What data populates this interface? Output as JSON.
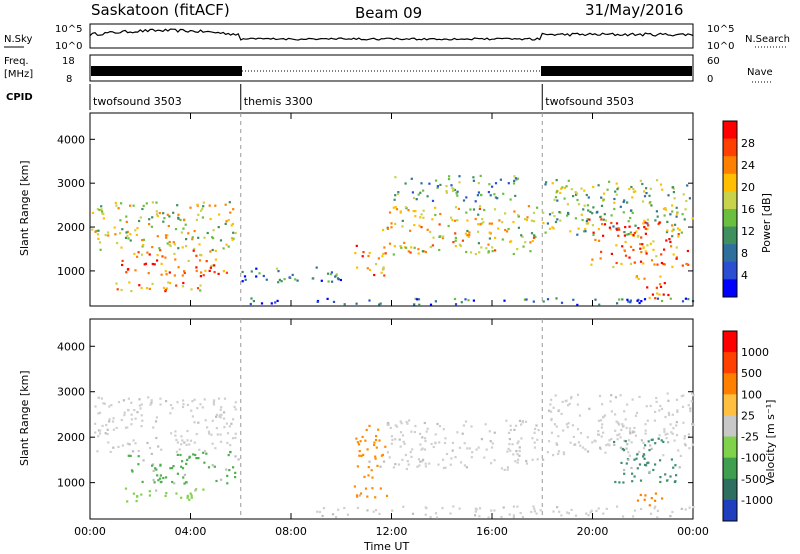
{
  "header": {
    "station": "Saskatoon (fitACF)",
    "beam": "Beam 09",
    "date": "31/May/2016"
  },
  "strips": {
    "nsky_label": "N.Sky",
    "nsky_ticks": [
      "10^5",
      "10^0"
    ],
    "nsearch_label": "N.Search",
    "nsearch_ticks": [
      "10^5",
      "10^0"
    ],
    "freq_label": "Freq.",
    "freq_unit": "[MHz]",
    "freq_ticks": [
      "18",
      "8"
    ],
    "nave_label": "Nave",
    "nave_ticks": [
      "60",
      "0"
    ],
    "cpid_label": "CPID"
  },
  "cpid_segments": [
    {
      "label": "twofsound 3503",
      "start_hour": 0,
      "end_hour": 6
    },
    {
      "label": "themis 3300",
      "start_hour": 6,
      "end_hour": 18
    },
    {
      "label": "twofsound 3503",
      "start_hour": 18,
      "end_hour": 24
    }
  ],
  "chart_data": [
    {
      "type": "heatmap",
      "panel": "power",
      "ylabel": "Slant Range [km]",
      "xlabel": "Time UT",
      "x_ticks": [
        "00:00",
        "04:00",
        "08:00",
        "12:00",
        "16:00",
        "20:00",
        "00:00"
      ],
      "x_tick_hours": [
        0,
        4,
        8,
        12,
        16,
        20,
        24
      ],
      "y_ticks": [
        1000,
        2000,
        3000,
        4000
      ],
      "ylim": [
        200,
        4600
      ],
      "colorbar_label": "Power [dB]",
      "colorbar_ticks": [
        "28",
        "24",
        "20",
        "16",
        "12",
        "8",
        "4"
      ],
      "colorbar_colors": [
        "#0000ff",
        "#2a4fd0",
        "#2e6f9e",
        "#3f8f5f",
        "#6bbf3f",
        "#c8d24a",
        "#ffbf00",
        "#ff8000",
        "#ff4000",
        "#ff0000"
      ],
      "regions": [
        {
          "t0": 0.0,
          "t1": 5.9,
          "r0": 1500,
          "r1": 2600,
          "level": 0.55
        },
        {
          "t0": 1.2,
          "t1": 5.6,
          "r0": 900,
          "r1": 1500,
          "level": 0.8
        },
        {
          "t0": 1.0,
          "t1": 4.4,
          "r0": 500,
          "r1": 800,
          "level": 0.7
        },
        {
          "t0": 5.9,
          "t1": 10.0,
          "r0": 700,
          "r1": 1100,
          "level": 0.3
        },
        {
          "t0": 6.0,
          "t1": 24.0,
          "r0": 250,
          "r1": 400,
          "level": 0.2
        },
        {
          "t0": 10.5,
          "t1": 11.7,
          "r0": 900,
          "r1": 1600,
          "level": 0.75
        },
        {
          "t0": 11.6,
          "t1": 18.0,
          "r0": 1400,
          "r1": 2500,
          "level": 0.6
        },
        {
          "t0": 12.0,
          "t1": 17.0,
          "r0": 2600,
          "r1": 3200,
          "level": 0.35
        },
        {
          "t0": 18.0,
          "t1": 24.0,
          "r0": 1800,
          "r1": 3100,
          "level": 0.45
        },
        {
          "t0": 19.8,
          "t1": 23.8,
          "r0": 1100,
          "r1": 2200,
          "level": 0.8
        },
        {
          "t0": 21.5,
          "t1": 23.0,
          "r0": 400,
          "r1": 900,
          "level": 0.85
        }
      ]
    },
    {
      "type": "heatmap",
      "panel": "velocity",
      "ylabel": "Slant Range [km]",
      "xlabel": "Time UT",
      "x_ticks": [
        "00:00",
        "04:00",
        "08:00",
        "12:00",
        "16:00",
        "20:00",
        "00:00"
      ],
      "x_tick_hours": [
        0,
        4,
        8,
        12,
        16,
        20,
        24
      ],
      "y_ticks": [
        1000,
        2000,
        3000,
        4000
      ],
      "ylim": [
        200,
        4600
      ],
      "colorbar_label": "Velocity [m s⁻¹]",
      "colorbar_ticks": [
        "1000",
        "500",
        "100",
        "25",
        "-25",
        "-100",
        "-500",
        "-1000"
      ],
      "colorbar_colors": [
        "#1f3fbf",
        "#2e6f5f",
        "#3f9f4f",
        "#7fd24a",
        "#c8c8c8",
        "#ffbf40",
        "#ff8000",
        "#ff4000",
        "#ff0000"
      ],
      "regions": [
        {
          "t0": 0.0,
          "t1": 5.9,
          "r0": 1700,
          "r1": 2900,
          "color": "#cfcfcf"
        },
        {
          "t0": 1.5,
          "t1": 6.0,
          "r0": 1000,
          "r1": 1700,
          "color": "#4faf4f"
        },
        {
          "t0": 1.0,
          "t1": 4.5,
          "r0": 600,
          "r1": 900,
          "color": "#7fd24a"
        },
        {
          "t0": 9.0,
          "t1": 24.0,
          "r0": 250,
          "r1": 500,
          "color": "#cfcfcf"
        },
        {
          "t0": 10.5,
          "t1": 11.8,
          "r0": 700,
          "r1": 2300,
          "color": "#ff8c00"
        },
        {
          "t0": 11.8,
          "t1": 18.0,
          "r0": 1300,
          "r1": 2400,
          "color": "#cfcfcf"
        },
        {
          "t0": 18.0,
          "t1": 24.0,
          "r0": 1600,
          "r1": 3000,
          "color": "#cfcfcf"
        },
        {
          "t0": 20.8,
          "t1": 23.5,
          "r0": 1000,
          "r1": 2000,
          "color": "#3f8f6f"
        },
        {
          "t0": 21.5,
          "t1": 22.8,
          "r0": 500,
          "r1": 800,
          "color": "#ff8000"
        }
      ]
    }
  ]
}
